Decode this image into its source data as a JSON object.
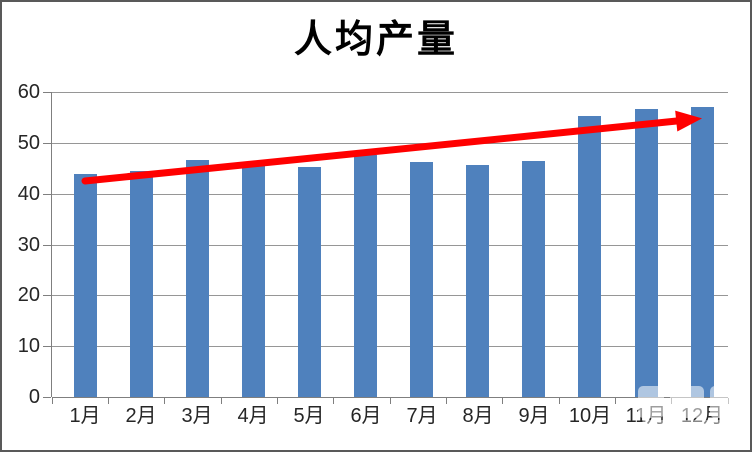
{
  "chart_data": {
    "type": "bar",
    "title": "人均产量",
    "categories": [
      "1月",
      "2月",
      "3月",
      "4月",
      "5月",
      "6月",
      "7月",
      "8月",
      "9月",
      "10月",
      "11月",
      "12月"
    ],
    "values": [
      43.8,
      44.4,
      46.6,
      45.8,
      45.2,
      47.6,
      46.3,
      45.6,
      46.4,
      55.3,
      56.6,
      57.0
    ],
    "xlabel": "",
    "ylabel": "",
    "ylim": [
      0,
      60
    ],
    "y_ticks": [
      0,
      10,
      20,
      30,
      40,
      50,
      60
    ],
    "grid": true,
    "legend_position": "none",
    "bar_color": "#4f81bd",
    "gridline_color": "#969696",
    "axis_color": "#7f7f7f",
    "tick_label_color": "#262626",
    "title_color": "#000000",
    "annotation": {
      "type": "trend-arrow",
      "color": "#ff0000",
      "from_category": "1月",
      "from_value": 42.5,
      "to_category": "12月",
      "to_value": 54.8
    }
  }
}
